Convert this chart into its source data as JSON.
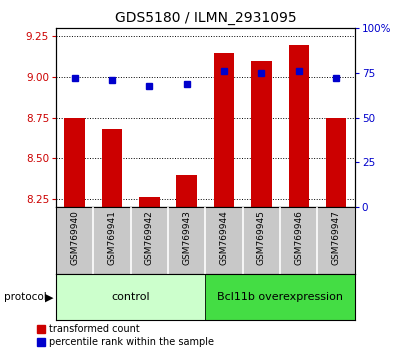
{
  "title": "GDS5180 / ILMN_2931095",
  "samples": [
    "GSM769940",
    "GSM769941",
    "GSM769942",
    "GSM769943",
    "GSM769944",
    "GSM769945",
    "GSM769946",
    "GSM769947"
  ],
  "red_values": [
    8.75,
    8.68,
    8.26,
    8.4,
    9.15,
    9.1,
    9.2,
    8.75
  ],
  "blue_values": [
    72,
    71,
    68,
    69,
    76,
    75,
    76,
    72
  ],
  "ylim_left": [
    8.2,
    9.3
  ],
  "ylim_right": [
    0,
    100
  ],
  "yticks_left": [
    8.25,
    8.5,
    8.75,
    9.0,
    9.25
  ],
  "yticks_right": [
    0,
    25,
    50,
    75,
    100
  ],
  "ytick_labels_right": [
    "0",
    "25",
    "50",
    "75",
    "100%"
  ],
  "bar_color": "#cc0000",
  "dot_color": "#0000cc",
  "bar_baseline": 8.2,
  "ctrl_color": "#ccffcc",
  "bcl_color": "#44dd44",
  "label_bg_color": "#c8c8c8",
  "tick_label_color_left": "#cc0000",
  "tick_label_color_right": "#0000cc",
  "legend_labels": [
    "transformed count",
    "percentile rank within the sample"
  ],
  "legend_colors": [
    "#cc0000",
    "#0000cc"
  ]
}
